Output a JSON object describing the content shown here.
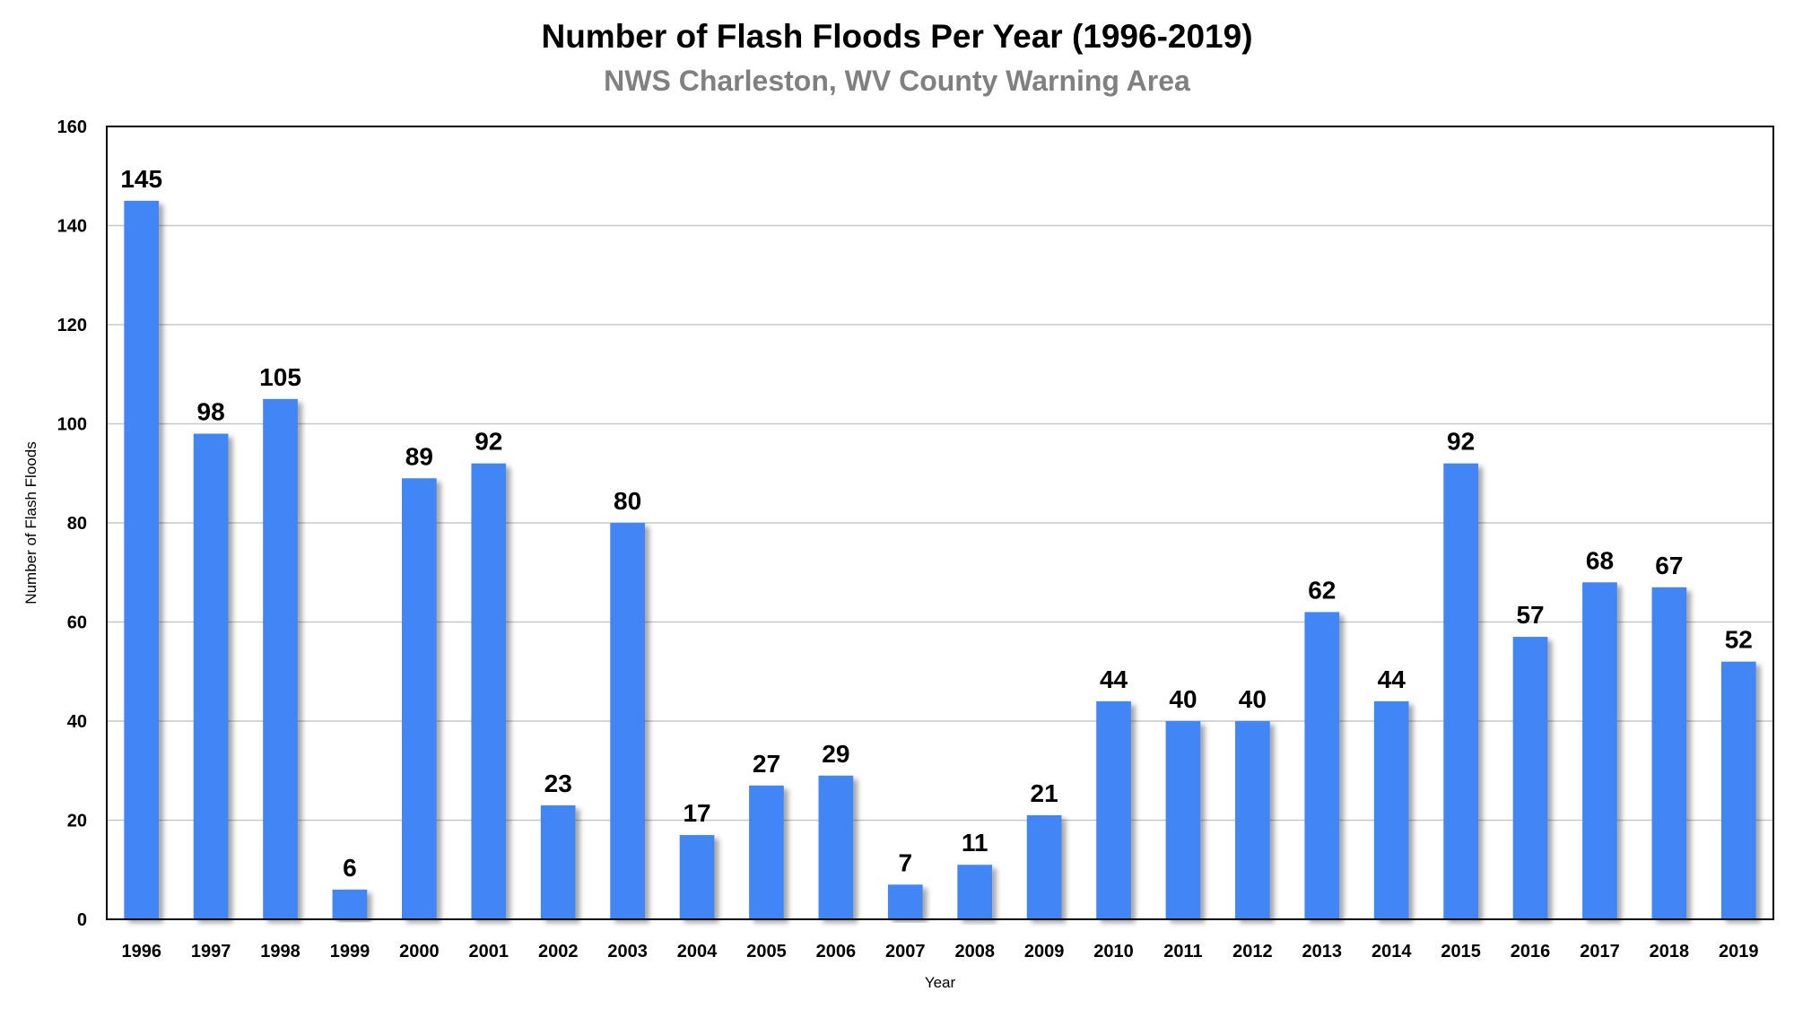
{
  "chart_data": {
    "type": "bar",
    "title": "Number of Flash Floods Per Year (1996-2019)",
    "subtitle": "NWS Charleston, WV County Warning Area",
    "xlabel": "Year",
    "ylabel": "Number of Flash Floods",
    "ylim": [
      0,
      160
    ],
    "yticks": [
      0,
      20,
      40,
      60,
      80,
      100,
      120,
      140,
      160
    ],
    "grid": true,
    "bar_color": "#4285f4",
    "categories": [
      "1996",
      "1997",
      "1998",
      "1999",
      "2000",
      "2001",
      "2002",
      "2003",
      "2004",
      "2005",
      "2006",
      "2007",
      "2008",
      "2009",
      "2010",
      "2011",
      "2012",
      "2013",
      "2014",
      "2015",
      "2016",
      "2017",
      "2018",
      "2019"
    ],
    "values": [
      145,
      98,
      105,
      6,
      89,
      92,
      23,
      80,
      17,
      27,
      29,
      7,
      11,
      21,
      44,
      40,
      40,
      62,
      44,
      92,
      57,
      68,
      67,
      52
    ]
  }
}
